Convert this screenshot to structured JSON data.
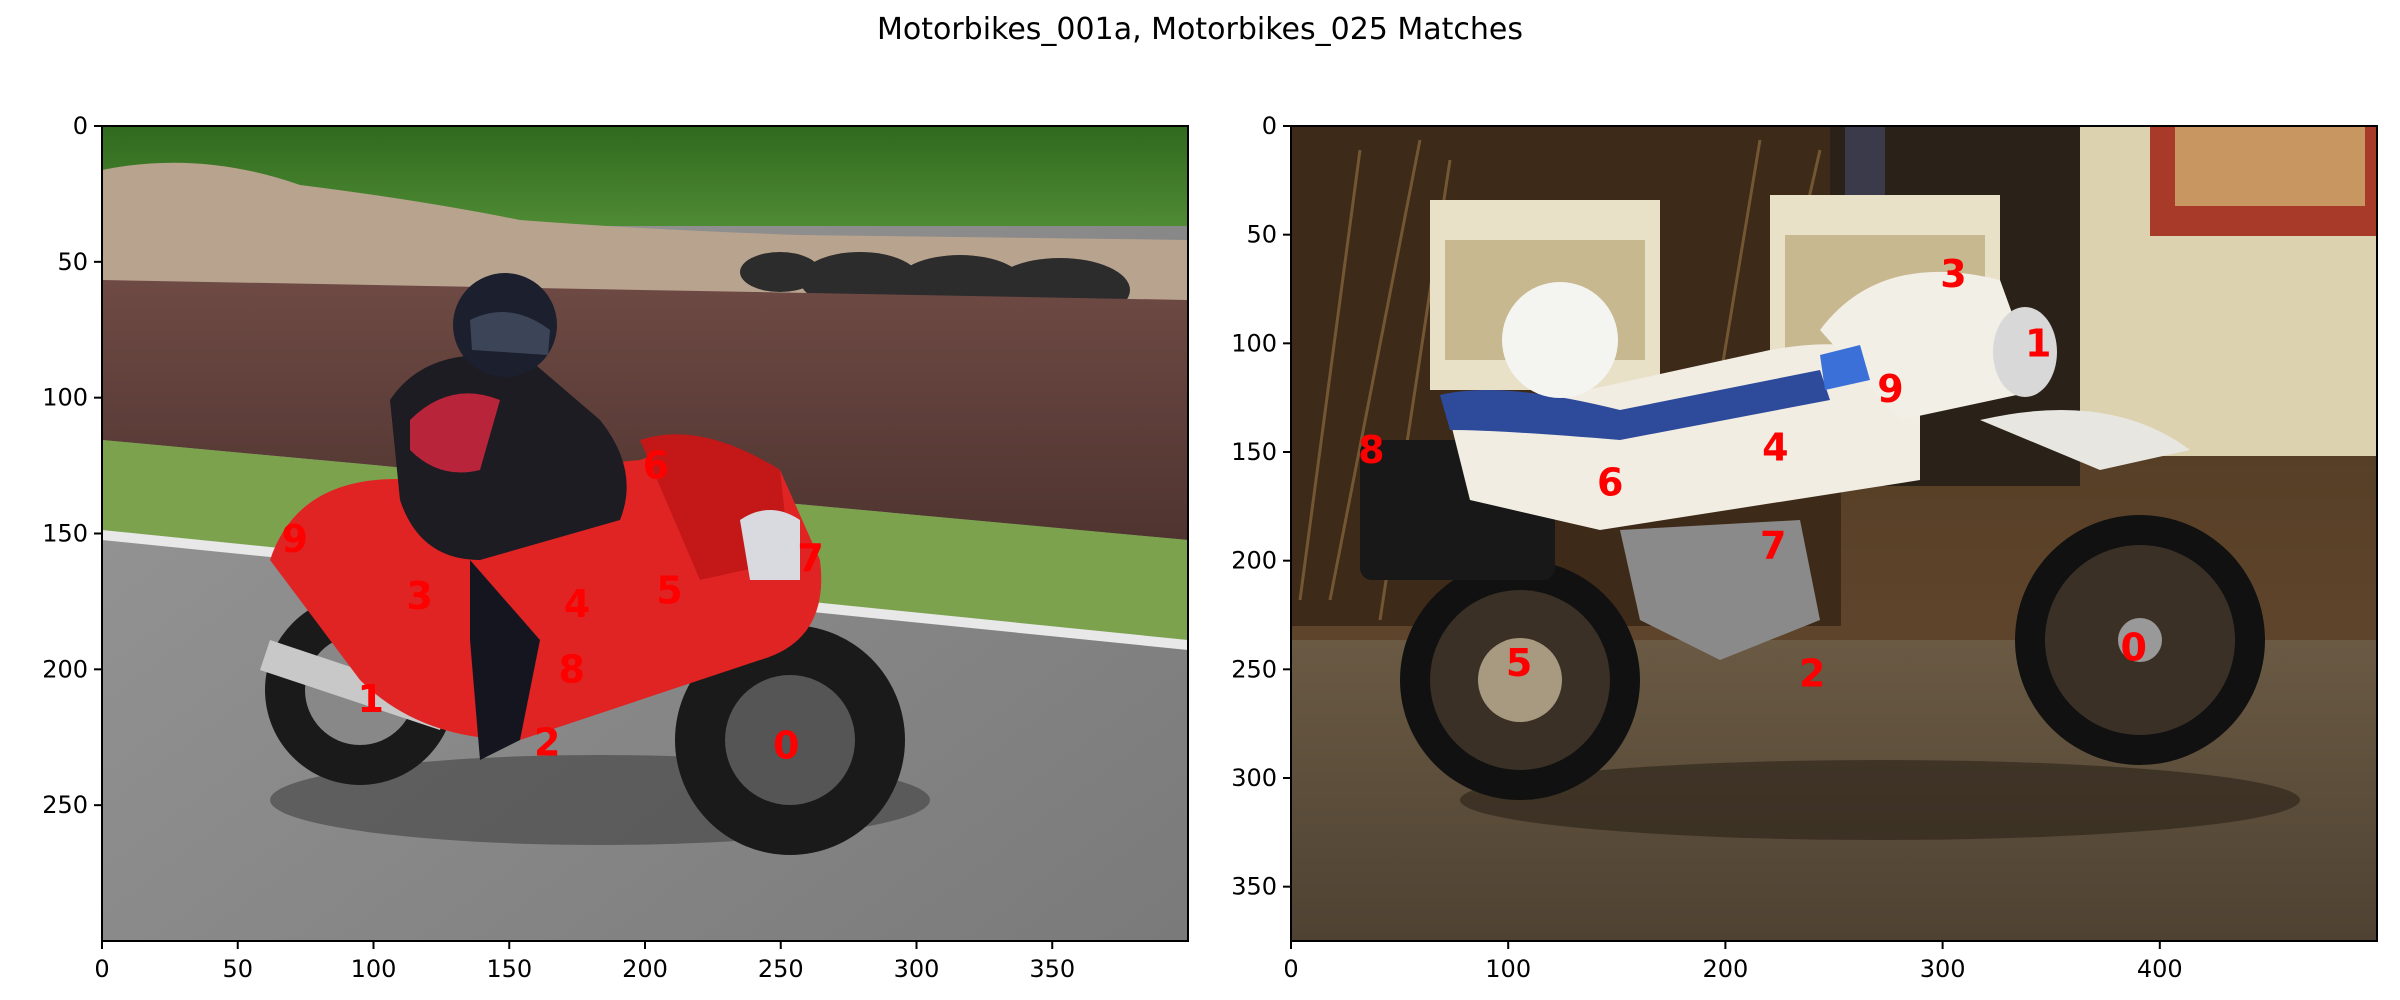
{
  "title": "Motorbikes_001a, Motorbikes_025 Matches",
  "panels": [
    {
      "x_ticks": [
        "0",
        "50",
        "100",
        "150",
        "200",
        "250",
        "300",
        "350"
      ],
      "y_ticks": [
        "0",
        "50",
        "100",
        "150",
        "200",
        "250"
      ],
      "x_range": [
        0,
        400
      ],
      "y_range": [
        0,
        300
      ],
      "keypoints": [
        {
          "label": "0",
          "x": 252,
          "y": 228
        },
        {
          "label": "1",
          "x": 99,
          "y": 211
        },
        {
          "label": "2",
          "x": 164,
          "y": 227
        },
        {
          "label": "3",
          "x": 117,
          "y": 173
        },
        {
          "label": "4",
          "x": 175,
          "y": 176
        },
        {
          "label": "5",
          "x": 209,
          "y": 171
        },
        {
          "label": "6",
          "x": 204,
          "y": 125
        },
        {
          "label": "7",
          "x": 261,
          "y": 159
        },
        {
          "label": "8",
          "x": 173,
          "y": 200
        },
        {
          "label": "9",
          "x": 71,
          "y": 152
        }
      ]
    },
    {
      "x_ticks": [
        "0",
        "100",
        "200",
        "300",
        "400"
      ],
      "y_ticks": [
        "0",
        "50",
        "100",
        "150",
        "200",
        "250",
        "300",
        "350"
      ],
      "x_range": [
        0,
        500
      ],
      "y_range": [
        0,
        375
      ],
      "keypoints": [
        {
          "label": "0",
          "x": 388,
          "y": 240
        },
        {
          "label": "1",
          "x": 344,
          "y": 100
        },
        {
          "label": "2",
          "x": 240,
          "y": 252
        },
        {
          "label": "3",
          "x": 305,
          "y": 68
        },
        {
          "label": "4",
          "x": 223,
          "y": 148
        },
        {
          "label": "5",
          "x": 105,
          "y": 247
        },
        {
          "label": "6",
          "x": 147,
          "y": 164
        },
        {
          "label": "7",
          "x": 222,
          "y": 193
        },
        {
          "label": "8",
          "x": 37,
          "y": 149
        },
        {
          "label": "9",
          "x": 276,
          "y": 121
        }
      ]
    }
  ],
  "colors": {
    "keypoint": "#ff0000"
  }
}
